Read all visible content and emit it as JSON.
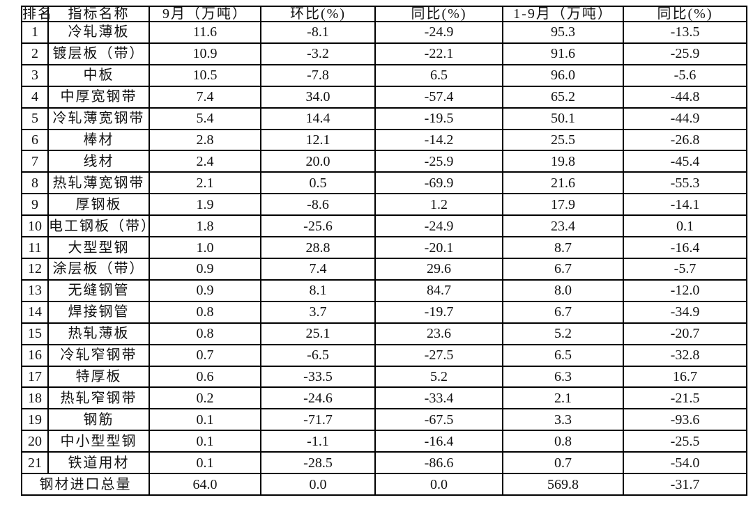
{
  "table": {
    "columns": [
      {
        "name": "col-rank",
        "label": "排名"
      },
      {
        "name": "col-indicator-name",
        "label": "指标名称"
      },
      {
        "name": "col-sep-volume",
        "label": "9月（万吨）"
      },
      {
        "name": "col-mom-pct",
        "label": "环比(%)"
      },
      {
        "name": "col-yoy-pct",
        "label": "同比(%)"
      },
      {
        "name": "col-jansep-volume",
        "label": "1-9月（万吨）"
      },
      {
        "name": "col-jansep-yoy-pct",
        "label": "同比(%)"
      }
    ],
    "rows": [
      {
        "rank": "1",
        "name": "冷轧薄板",
        "sep": "11.6",
        "mom": "-8.1",
        "yoy": "-24.9",
        "jan_sep": "95.3",
        "jan_sep_yoy": "-13.5"
      },
      {
        "rank": "2",
        "name": "镀层板（带）",
        "sep": "10.9",
        "mom": "-3.2",
        "yoy": "-22.1",
        "jan_sep": "91.6",
        "jan_sep_yoy": "-25.9"
      },
      {
        "rank": "3",
        "name": "中板",
        "sep": "10.5",
        "mom": "-7.8",
        "yoy": "6.5",
        "jan_sep": "96.0",
        "jan_sep_yoy": "-5.6"
      },
      {
        "rank": "4",
        "name": "中厚宽钢带",
        "sep": "7.4",
        "mom": "34.0",
        "yoy": "-57.4",
        "jan_sep": "65.2",
        "jan_sep_yoy": "-44.8"
      },
      {
        "rank": "5",
        "name": "冷轧薄宽钢带",
        "sep": "5.4",
        "mom": "14.4",
        "yoy": "-19.5",
        "jan_sep": "50.1",
        "jan_sep_yoy": "-44.9"
      },
      {
        "rank": "6",
        "name": "棒材",
        "sep": "2.8",
        "mom": "12.1",
        "yoy": "-14.2",
        "jan_sep": "25.5",
        "jan_sep_yoy": "-26.8"
      },
      {
        "rank": "7",
        "name": "线材",
        "sep": "2.4",
        "mom": "20.0",
        "yoy": "-25.9",
        "jan_sep": "19.8",
        "jan_sep_yoy": "-45.4"
      },
      {
        "rank": "8",
        "name": "热轧薄宽钢带",
        "sep": "2.1",
        "mom": "0.5",
        "yoy": "-69.9",
        "jan_sep": "21.6",
        "jan_sep_yoy": "-55.3"
      },
      {
        "rank": "9",
        "name": "厚钢板",
        "sep": "1.9",
        "mom": "-8.6",
        "yoy": "1.2",
        "jan_sep": "17.9",
        "jan_sep_yoy": "-14.1"
      },
      {
        "rank": "10",
        "name": "电工钢板（带）",
        "sep": "1.8",
        "mom": "-25.6",
        "yoy": "-24.9",
        "jan_sep": "23.4",
        "jan_sep_yoy": "0.1"
      },
      {
        "rank": "11",
        "name": "大型型钢",
        "sep": "1.0",
        "mom": "28.8",
        "yoy": "-20.1",
        "jan_sep": "8.7",
        "jan_sep_yoy": "-16.4"
      },
      {
        "rank": "12",
        "name": "涂层板（带）",
        "sep": "0.9",
        "mom": "7.4",
        "yoy": "29.6",
        "jan_sep": "6.7",
        "jan_sep_yoy": "-5.7"
      },
      {
        "rank": "13",
        "name": "无缝钢管",
        "sep": "0.9",
        "mom": "8.1",
        "yoy": "84.7",
        "jan_sep": "8.0",
        "jan_sep_yoy": "-12.0"
      },
      {
        "rank": "14",
        "name": "焊接钢管",
        "sep": "0.8",
        "mom": "3.7",
        "yoy": "-19.7",
        "jan_sep": "6.7",
        "jan_sep_yoy": "-34.9"
      },
      {
        "rank": "15",
        "name": "热轧薄板",
        "sep": "0.8",
        "mom": "25.1",
        "yoy": "23.6",
        "jan_sep": "5.2",
        "jan_sep_yoy": "-20.7"
      },
      {
        "rank": "16",
        "name": "冷轧窄钢带",
        "sep": "0.7",
        "mom": "-6.5",
        "yoy": "-27.5",
        "jan_sep": "6.5",
        "jan_sep_yoy": "-32.8"
      },
      {
        "rank": "17",
        "name": "特厚板",
        "sep": "0.6",
        "mom": "-33.5",
        "yoy": "5.2",
        "jan_sep": "6.3",
        "jan_sep_yoy": "16.7"
      },
      {
        "rank": "18",
        "name": "热轧窄钢带",
        "sep": "0.2",
        "mom": "-24.6",
        "yoy": "-33.4",
        "jan_sep": "2.1",
        "jan_sep_yoy": "-21.5"
      },
      {
        "rank": "19",
        "name": "钢筋",
        "sep": "0.1",
        "mom": "-71.7",
        "yoy": "-67.5",
        "jan_sep": "3.3",
        "jan_sep_yoy": "-93.6"
      },
      {
        "rank": "20",
        "name": "中小型型钢",
        "sep": "0.1",
        "mom": "-1.1",
        "yoy": "-16.4",
        "jan_sep": "0.8",
        "jan_sep_yoy": "-25.5"
      },
      {
        "rank": "21",
        "name": "铁道用材",
        "sep": "0.1",
        "mom": "-28.5",
        "yoy": "-86.6",
        "jan_sep": "0.7",
        "jan_sep_yoy": "-54.0"
      }
    ],
    "total_row": {
      "label": "钢材进口总量",
      "sep": "64.0",
      "mom": "0.0",
      "yoy": "0.0",
      "jan_sep": "569.8",
      "jan_sep_yoy": "-31.7"
    }
  }
}
